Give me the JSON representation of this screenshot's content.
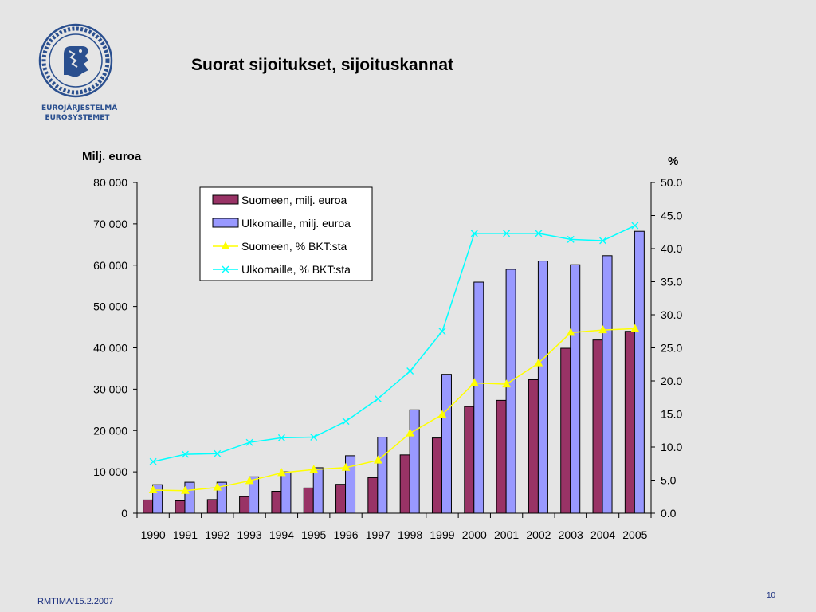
{
  "page": {
    "title": "Suorat sijoitukset, sijoituskannat",
    "logo_sub_line1": "EUROJÄRJESTELMÄ",
    "logo_sub_line2": "EUROSYSTEMET",
    "footer_left": "RMTIMA/15.2.2007",
    "page_number": "10"
  },
  "colors": {
    "background": "#e5e5e5",
    "logo_blue": "#2a4f8f",
    "suomeen_bar": "#993366",
    "ulkomaille_bar": "#9999ff",
    "suomeen_line": "#ffff00",
    "ulkomaille_line": "#00ffff"
  },
  "chart_data": {
    "type": "bar",
    "left_axis_label": "Milj. euroa",
    "right_axis_label": "%",
    "categories": [
      "1990",
      "1991",
      "1992",
      "1993",
      "1994",
      "1995",
      "1996",
      "1997",
      "1998",
      "1999",
      "2000",
      "2001",
      "2002",
      "2003",
      "2004",
      "2005"
    ],
    "y_left": {
      "min": 0,
      "max": 80000,
      "step": 10000,
      "ticks": [
        "0",
        "10 000",
        "20 000",
        "30 000",
        "40 000",
        "50 000",
        "60 000",
        "70 000",
        "80 000"
      ]
    },
    "y_right": {
      "min": 0,
      "max": 50,
      "step": 5,
      "ticks": [
        "0.0",
        "5.0",
        "10.0",
        "15.0",
        "20.0",
        "25.0",
        "30.0",
        "35.0",
        "40.0",
        "45.0",
        "50.0"
      ]
    },
    "grid": false,
    "legend_position": "top-left inside plot",
    "series": [
      {
        "name": "Suomeen, milj. euroa",
        "kind": "bar",
        "axis": "left",
        "color": "#993366",
        "values": [
          3200,
          3000,
          3300,
          4000,
          5300,
          6100,
          7000,
          8600,
          14100,
          18200,
          25800,
          27300,
          32300,
          39900,
          41900,
          44000
        ]
      },
      {
        "name": "Ulkomaille, milj. euroa",
        "kind": "bar",
        "axis": "left",
        "color": "#9999ff",
        "values": [
          6900,
          7500,
          7500,
          8800,
          10000,
          11000,
          13900,
          18400,
          25000,
          33600,
          55900,
          59000,
          61000,
          60100,
          62300,
          68200
        ]
      },
      {
        "name": "Suomeen, % BKT:sta",
        "kind": "line",
        "marker": "triangle",
        "axis": "right",
        "color": "#ffff00",
        "values": [
          3.5,
          3.4,
          3.9,
          4.9,
          6.1,
          6.6,
          6.9,
          8.0,
          12.1,
          14.9,
          19.7,
          19.5,
          22.7,
          27.3,
          27.7,
          27.9
        ]
      },
      {
        "name": "Ulkomaille, % BKT:sta",
        "kind": "line",
        "marker": "x",
        "axis": "right",
        "color": "#00ffff",
        "values": [
          7.8,
          8.9,
          9.0,
          10.7,
          11.4,
          11.5,
          13.9,
          17.3,
          21.5,
          27.5,
          42.3,
          42.3,
          42.3,
          41.4,
          41.2,
          43.5
        ]
      }
    ]
  }
}
